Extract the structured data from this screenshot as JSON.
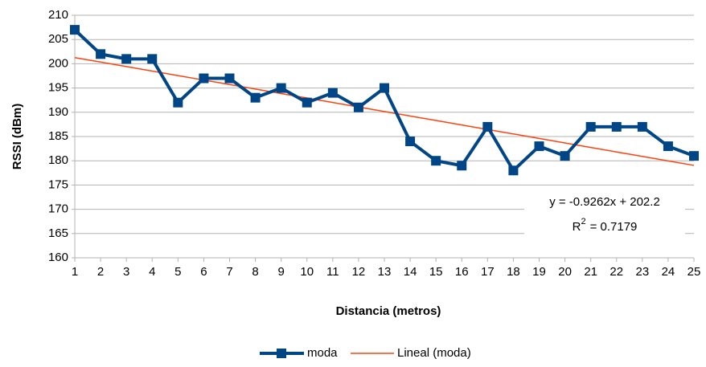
{
  "chart_data": {
    "type": "line",
    "xlabel": "Distancia (metros)",
    "ylabel": "RSSI (dBm)",
    "categories": [
      "1",
      "2",
      "3",
      "4",
      "5",
      "6",
      "7",
      "8",
      "9",
      "10",
      "11",
      "12",
      "13",
      "14",
      "15",
      "16",
      "17",
      "18",
      "19",
      "20",
      "21",
      "22",
      "23",
      "24",
      "25"
    ],
    "series": [
      {
        "name": "moda",
        "color": "#004586",
        "marker": "square",
        "values": [
          207,
          202,
          201,
          201,
          192,
          197,
          197,
          193,
          195,
          192,
          194,
          191,
          195,
          184,
          180,
          179,
          187,
          178,
          183,
          181,
          187,
          187,
          187,
          183,
          181
        ]
      },
      {
        "name": "Lineal (moda)",
        "color": "#ff420e",
        "values": [
          201.27,
          200.35,
          199.42,
          198.5,
          197.57,
          196.64,
          195.72,
          194.79,
          193.86,
          192.94,
          192.01,
          191.09,
          190.16,
          189.23,
          188.31,
          187.38,
          186.45,
          185.53,
          184.6,
          183.68,
          182.75,
          181.82,
          180.9,
          179.97,
          179.05
        ]
      }
    ],
    "annotation": {
      "equation": "y = -0.9262x + 202.2",
      "r2_base": "R",
      "r2_exponent": "2",
      "r2_value": "= 0.7179"
    },
    "ylim": [
      160,
      210
    ],
    "yticks": [
      160,
      165,
      170,
      175,
      180,
      185,
      190,
      195,
      200,
      205,
      210
    ],
    "grid": true,
    "legend": "bottom"
  }
}
